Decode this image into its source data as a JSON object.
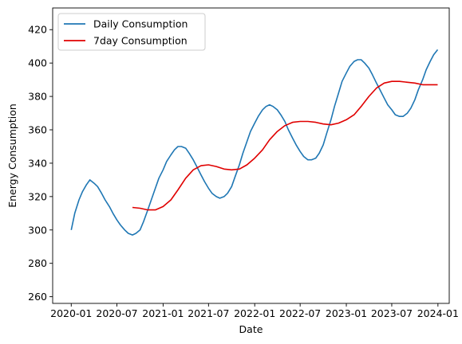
{
  "chart_data": {
    "type": "line",
    "title": "",
    "xlabel": "Date",
    "ylabel": "Energy Consumption",
    "xlim": [
      "2019-10-19",
      "2024-02-15"
    ],
    "ylim": [
      256,
      433
    ],
    "xticks": [
      {
        "date": "2020-01-01",
        "label": "2020-01"
      },
      {
        "date": "2020-07-01",
        "label": "2020-07"
      },
      {
        "date": "2021-01-01",
        "label": "2021-01"
      },
      {
        "date": "2021-07-01",
        "label": "2021-07"
      },
      {
        "date": "2022-01-01",
        "label": "2022-01"
      },
      {
        "date": "2022-07-01",
        "label": "2022-07"
      },
      {
        "date": "2023-01-01",
        "label": "2023-01"
      },
      {
        "date": "2023-07-01",
        "label": "2023-07"
      },
      {
        "date": "2024-01-01",
        "label": "2024-01"
      }
    ],
    "yticks": [
      260,
      280,
      300,
      320,
      340,
      360,
      380,
      400,
      420
    ],
    "grid": false,
    "legend": "upper-left",
    "series": [
      {
        "name": "Daily Consumption",
        "color": "#1f77b4",
        "points": [
          [
            "2020-01-01",
            300
          ],
          [
            "2020-01-15",
            310
          ],
          [
            "2020-02-01",
            318
          ],
          [
            "2020-02-15",
            323
          ],
          [
            "2020-03-01",
            327
          ],
          [
            "2020-03-15",
            330
          ],
          [
            "2020-04-01",
            328
          ],
          [
            "2020-04-15",
            326
          ],
          [
            "2020-05-01",
            322
          ],
          [
            "2020-05-15",
            318
          ],
          [
            "2020-06-01",
            314
          ],
          [
            "2020-06-15",
            310
          ],
          [
            "2020-07-01",
            306
          ],
          [
            "2020-07-15",
            303
          ],
          [
            "2020-08-01",
            300
          ],
          [
            "2020-08-15",
            298
          ],
          [
            "2020-09-01",
            297
          ],
          [
            "2020-09-15",
            298
          ],
          [
            "2020-10-01",
            300
          ],
          [
            "2020-10-15",
            305
          ],
          [
            "2020-11-01",
            312
          ],
          [
            "2020-11-15",
            318
          ],
          [
            "2020-12-01",
            325
          ],
          [
            "2020-12-15",
            331
          ],
          [
            "2021-01-01",
            336
          ],
          [
            "2021-01-15",
            341
          ],
          [
            "2021-02-01",
            345
          ],
          [
            "2021-02-15",
            348
          ],
          [
            "2021-03-01",
            350
          ],
          [
            "2021-03-15",
            350
          ],
          [
            "2021-04-01",
            349
          ],
          [
            "2021-04-15",
            346
          ],
          [
            "2021-05-01",
            342
          ],
          [
            "2021-05-15",
            338
          ],
          [
            "2021-06-01",
            333
          ],
          [
            "2021-06-15",
            329
          ],
          [
            "2021-07-01",
            325
          ],
          [
            "2021-07-15",
            322
          ],
          [
            "2021-08-01",
            320
          ],
          [
            "2021-08-15",
            319
          ],
          [
            "2021-09-01",
            320
          ],
          [
            "2021-09-15",
            322
          ],
          [
            "2021-10-01",
            326
          ],
          [
            "2021-10-15",
            332
          ],
          [
            "2021-11-01",
            339
          ],
          [
            "2021-11-15",
            346
          ],
          [
            "2021-12-01",
            353
          ],
          [
            "2021-12-15",
            359
          ],
          [
            "2022-01-01",
            364
          ],
          [
            "2022-01-15",
            368
          ],
          [
            "2022-02-01",
            372
          ],
          [
            "2022-02-15",
            374
          ],
          [
            "2022-03-01",
            375
          ],
          [
            "2022-03-15",
            374
          ],
          [
            "2022-04-01",
            372
          ],
          [
            "2022-04-15",
            369
          ],
          [
            "2022-05-01",
            365
          ],
          [
            "2022-05-15",
            360
          ],
          [
            "2022-06-01",
            355
          ],
          [
            "2022-06-15",
            351
          ],
          [
            "2022-07-01",
            347
          ],
          [
            "2022-07-15",
            344
          ],
          [
            "2022-08-01",
            342
          ],
          [
            "2022-08-15",
            342
          ],
          [
            "2022-09-01",
            343
          ],
          [
            "2022-09-15",
            346
          ],
          [
            "2022-10-01",
            351
          ],
          [
            "2022-10-15",
            358
          ],
          [
            "2022-11-01",
            366
          ],
          [
            "2022-11-15",
            374
          ],
          [
            "2022-12-01",
            382
          ],
          [
            "2022-12-15",
            389
          ],
          [
            "2023-01-01",
            394
          ],
          [
            "2023-01-15",
            398
          ],
          [
            "2023-02-01",
            401
          ],
          [
            "2023-02-15",
            402
          ],
          [
            "2023-03-01",
            402
          ],
          [
            "2023-03-15",
            400
          ],
          [
            "2023-04-01",
            397
          ],
          [
            "2023-04-15",
            393
          ],
          [
            "2023-05-01",
            388
          ],
          [
            "2023-05-15",
            384
          ],
          [
            "2023-06-01",
            379
          ],
          [
            "2023-06-15",
            375
          ],
          [
            "2023-07-01",
            372
          ],
          [
            "2023-07-15",
            369
          ],
          [
            "2023-08-01",
            368
          ],
          [
            "2023-08-15",
            368
          ],
          [
            "2023-09-01",
            370
          ],
          [
            "2023-09-15",
            373
          ],
          [
            "2023-10-01",
            378
          ],
          [
            "2023-10-15",
            384
          ],
          [
            "2023-11-01",
            390
          ],
          [
            "2023-11-15",
            396
          ],
          [
            "2023-12-01",
            401
          ],
          [
            "2023-12-15",
            405
          ],
          [
            "2023-12-31",
            408
          ]
        ]
      },
      {
        "name": "7day Consumption",
        "color": "#e00000",
        "points": [
          [
            "2020-09-01",
            313.5
          ],
          [
            "2020-10-01",
            313
          ],
          [
            "2020-11-01",
            312
          ],
          [
            "2020-12-01",
            312
          ],
          [
            "2021-01-01",
            314
          ],
          [
            "2021-02-01",
            318
          ],
          [
            "2021-03-01",
            324
          ],
          [
            "2021-04-01",
            331
          ],
          [
            "2021-05-01",
            336
          ],
          [
            "2021-06-01",
            338.5
          ],
          [
            "2021-07-01",
            339
          ],
          [
            "2021-08-01",
            338
          ],
          [
            "2021-09-01",
            336.5
          ],
          [
            "2021-10-01",
            336
          ],
          [
            "2021-11-01",
            336.5
          ],
          [
            "2021-12-01",
            339
          ],
          [
            "2022-01-01",
            343
          ],
          [
            "2022-02-01",
            348
          ],
          [
            "2022-03-01",
            354
          ],
          [
            "2022-04-01",
            359
          ],
          [
            "2022-05-01",
            362.5
          ],
          [
            "2022-06-01",
            364.5
          ],
          [
            "2022-07-01",
            365
          ],
          [
            "2022-08-01",
            365
          ],
          [
            "2022-09-01",
            364.5
          ],
          [
            "2022-10-01",
            363.5
          ],
          [
            "2022-11-01",
            363
          ],
          [
            "2022-12-01",
            364
          ],
          [
            "2023-01-01",
            366
          ],
          [
            "2023-02-01",
            369
          ],
          [
            "2023-03-01",
            374
          ],
          [
            "2023-04-01",
            380
          ],
          [
            "2023-05-01",
            385
          ],
          [
            "2023-06-01",
            388
          ],
          [
            "2023-07-01",
            389
          ],
          [
            "2023-08-01",
            389
          ],
          [
            "2023-09-01",
            388.5
          ],
          [
            "2023-10-01",
            388
          ],
          [
            "2023-11-01",
            387
          ],
          [
            "2023-12-01",
            387
          ],
          [
            "2023-12-31",
            387
          ]
        ]
      }
    ]
  }
}
